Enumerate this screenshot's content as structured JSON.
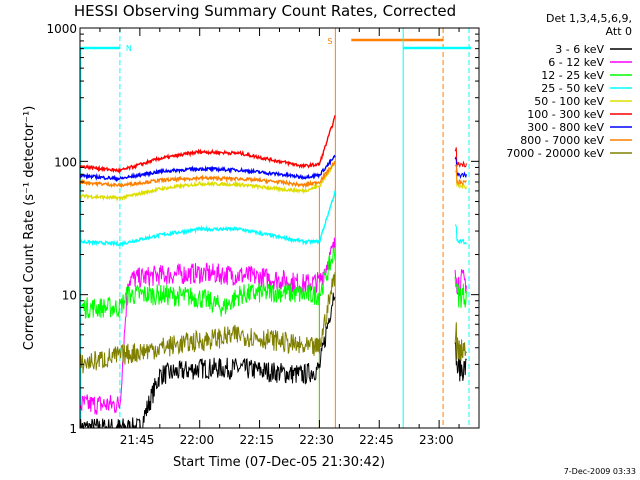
{
  "chart_data": {
    "type": "line",
    "title": "HESSI Observing Summary Count Rates, Corrected",
    "xlabel": "Start Time (07-Dec-05 21:30:42)",
    "ylabel": "Corrected Count Rate (s⁻¹ detector⁻¹)",
    "y_scale": "log",
    "ylim": [
      1,
      1000
    ],
    "xlim_minutes": [
      0,
      100
    ],
    "x_tick_labels": [
      "21:45",
      "22:00",
      "22:15",
      "22:30",
      "22:45",
      "23:00"
    ],
    "y_tick_labels": [
      "1",
      "10",
      "100",
      "1000"
    ],
    "legend_header": [
      "Det 1,3,4,5,6,9,",
      "Att 0"
    ],
    "legend_placement": "right",
    "grid": false,
    "series": [
      {
        "name": "3 - 6 keV",
        "color": "#000000",
        "x": [
          0,
          15,
          20,
          30,
          40,
          50,
          56,
          60,
          64
        ],
        "y": [
          1,
          1,
          2.5,
          2.8,
          2.8,
          2.6,
          2.5,
          2.8,
          12
        ]
      },
      {
        "name": "6 - 12 keV",
        "color": "#ff00ff",
        "x": [
          0,
          10,
          12,
          20,
          30,
          40,
          50,
          56,
          60,
          64
        ],
        "y": [
          1.5,
          1.5,
          13,
          14,
          14.5,
          14,
          13,
          12,
          12.5,
          24
        ]
      },
      {
        "name": "12 - 25 keV",
        "color": "#00ff00",
        "x": [
          0,
          10,
          12,
          20,
          30,
          36,
          40,
          50,
          56,
          60,
          64
        ],
        "y": [
          8,
          8,
          10,
          10,
          9.5,
          8,
          10,
          10.5,
          10,
          10,
          22
        ]
      },
      {
        "name": "25 - 50 keV",
        "color": "#00ffff",
        "x": [
          0,
          10,
          20,
          30,
          40,
          50,
          56,
          60,
          64
        ],
        "y": [
          25,
          24,
          28,
          31,
          31,
          27,
          25,
          25,
          60
        ]
      },
      {
        "name": "50 - 100 keV",
        "color": "#dddd00",
        "x": [
          0,
          10,
          20,
          30,
          40,
          50,
          56,
          60,
          64
        ],
        "y": [
          55,
          53,
          62,
          68,
          67,
          62,
          60,
          65,
          100
        ]
      },
      {
        "name": "100 - 300 keV",
        "color": "#ff0000",
        "x": [
          0,
          10,
          20,
          30,
          40,
          50,
          56,
          60,
          64
        ],
        "y": [
          92,
          85,
          105,
          118,
          115,
          100,
          92,
          95,
          220
        ]
      },
      {
        "name": "300 - 800 keV",
        "color": "#0000ff",
        "x": [
          0,
          10,
          20,
          30,
          40,
          50,
          56,
          60,
          64
        ],
        "y": [
          78,
          74,
          84,
          88,
          86,
          80,
          76,
          79,
          110
        ]
      },
      {
        "name": "800 - 7000 keV",
        "color": "#ff8000",
        "x": [
          0,
          10,
          20,
          30,
          40,
          50,
          56,
          60,
          64
        ],
        "y": [
          70,
          66,
          72,
          75,
          74,
          70,
          66,
          70,
          100
        ]
      },
      {
        "name": "7000 - 20000 keV",
        "color": "#808000",
        "x": [
          0,
          10,
          20,
          30,
          40,
          50,
          56,
          60,
          64
        ],
        "y": [
          3,
          3.5,
          4,
          4.5,
          5,
          4.5,
          4,
          4,
          15
        ]
      }
    ],
    "right_segment_minutes": [
      94,
      97
    ],
    "annotations": [
      {
        "text": "N",
        "color": "#00ffff"
      },
      {
        "text": "S",
        "color": "#ff8000"
      }
    ]
  },
  "footer": {
    "date_stamp": "7-Dec-2009 03:33"
  }
}
